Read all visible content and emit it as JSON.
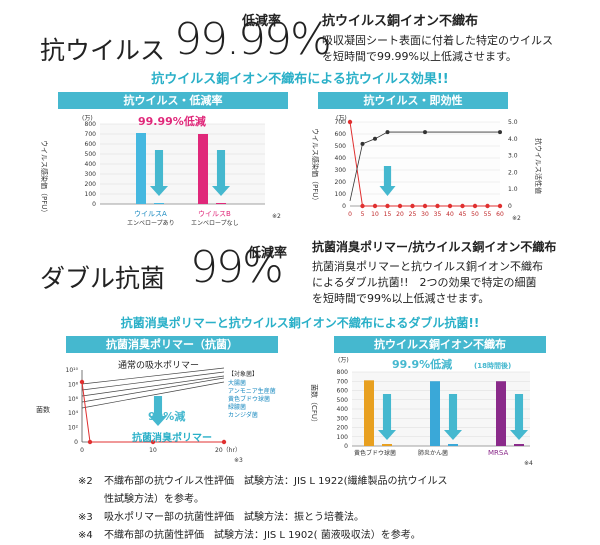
{
  "section1": {
    "title_prefix": "抗ウイルス",
    "title_value": "99.99%",
    "title_suffix": "低減率",
    "desc_heading": "抗ウイルス銅イオン不織布",
    "desc_lines": [
      "吸収凝固シート表面に付着した特定のウイルス",
      "を短時間で99.99%以上低減させます。"
    ],
    "banner": "抗ウイルス銅イオン不織布による抗ウイルス効果!!"
  },
  "chart1": {
    "header": "抗ウイルス・低減率",
    "ylabel": "ウイルス感染価（PFU）",
    "unit": "(万)",
    "ylim": [
      0,
      800
    ],
    "yticks": [
      "800",
      "700",
      "600",
      "500",
      "400",
      "300",
      "200",
      "100",
      "0"
    ],
    "callout": "99.99%低減",
    "note": "※2",
    "colors": {
      "a": "#45b8e0",
      "b": "#e0287a",
      "arrow": "#45b8cf"
    },
    "bars": [
      {
        "label": "ウイルスA",
        "sublabel": "エンベロープあり",
        "before": 710,
        "after": 0
      },
      {
        "label": "ウイルスB",
        "sublabel": "エンベロープなし",
        "before": 700,
        "after": 0
      }
    ]
  },
  "chart2": {
    "header": "抗ウイルス・即効性",
    "ylabel": "ウイルス感染価（PFU）",
    "y2label": "抗ウイルス活性値",
    "unit": "(万)",
    "ylim": [
      0,
      700
    ],
    "yticks": [
      "700",
      "600",
      "500",
      "400",
      "300",
      "200",
      "100",
      "0"
    ],
    "y2ticks": [
      "5.0",
      "4.0",
      "3.0",
      "2.0",
      "1.0",
      "0"
    ],
    "x": [
      "0",
      "5",
      "10",
      "15",
      "20",
      "25",
      "30",
      "35",
      "40",
      "45",
      "50",
      "55",
      "60"
    ],
    "note": "※2",
    "infection_series": [
      700,
      0,
      0,
      0,
      0,
      0,
      0,
      0,
      0,
      0,
      0,
      0,
      0
    ],
    "activity_series": [
      {
        "x": 5,
        "y": 3.7
      },
      {
        "x": 10,
        "y": 4.0
      },
      {
        "x": 15,
        "y": 4.4
      },
      {
        "x": 30,
        "y": 4.4
      },
      {
        "x": 60,
        "y": 4.4
      }
    ]
  },
  "section2": {
    "title_prefix": "ダブル抗菌",
    "title_value": "99%",
    "title_suffix": "低減率",
    "desc_heading": "抗菌消臭ポリマー/抗ウイルス銅イオン不織布",
    "desc_lines": [
      "抗菌消臭ポリマーと抗ウイルス銅イオン不織布",
      "によるダブル抗菌!!　2つの効果で特定の細菌",
      "を短時間で99%以上低減させます。"
    ],
    "banner": "抗菌消臭ポリマーと抗ウイルス銅イオン不織布によるダブル抗菌!!"
  },
  "chart3": {
    "header": "抗菌消臭ポリマー（抗菌）",
    "ylabel": "菌数",
    "yticks": [
      "10¹⁰",
      "10⁸",
      "10⁶",
      "10⁴",
      "10²",
      "0"
    ],
    "x": [
      "0",
      "10",
      "20（hr）"
    ],
    "normal_label": "通常の吸水ポリマー",
    "polymer_label": "抗菌消臭ポリマー",
    "callout": "99%減",
    "legend_title": "【対象菌】",
    "legend_items": [
      "大腸菌",
      "アンモニア生産菌",
      "黄色ブドウ球菌",
      "緑膿菌",
      "カンジダ菌"
    ],
    "note": "※3"
  },
  "chart4": {
    "header": "抗ウイルス銅イオン不織布",
    "ylabel": "菌数（CFU）",
    "unit": "(万)",
    "ylim": [
      0,
      800
    ],
    "yticks": [
      "800",
      "700",
      "600",
      "500",
      "400",
      "300",
      "200",
      "100",
      "0"
    ],
    "callout": "99.9%低減",
    "callout_sub": "(18時間後)",
    "note": "※4",
    "bars": [
      {
        "label": "黄色ブドウ球菌",
        "value": 710,
        "color": "#e8a020"
      },
      {
        "label": "肺炎かん菌",
        "value": 700,
        "color": "#3aa8d8"
      },
      {
        "label": "MRSA",
        "value": 700,
        "color": "#8a2a8a"
      }
    ]
  },
  "footnotes": [
    {
      "mark": "※2",
      "text": "不織布部の抗ウイルス性評価　試験方法：JIS L 1922(繊維製品の抗ウイルス"
    },
    {
      "mark": "",
      "text": "性試験方法）を参考。"
    },
    {
      "mark": "※3",
      "text": "吸水ポリマー部の抗菌性評価　試験方法：振とう培養法。"
    },
    {
      "mark": "※4",
      "text": "不織布部の抗菌性評価　試験方法：JIS L 1902( 菌液吸収法）を参考。"
    }
  ]
}
